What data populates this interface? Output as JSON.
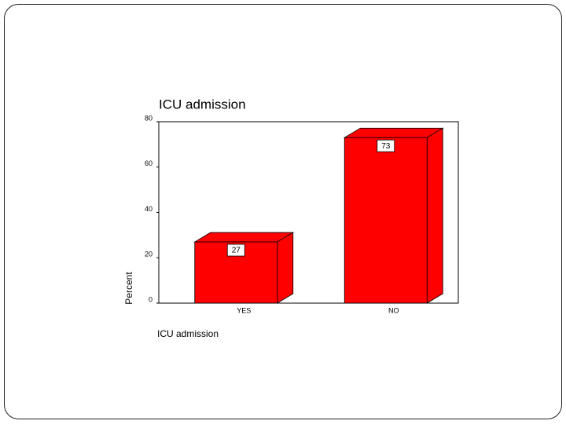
{
  "chart_data": {
    "type": "bar3d",
    "title": "ICU admission",
    "categories": [
      "YES",
      "NO"
    ],
    "values": [
      27,
      73
    ],
    "color": "#ff0000",
    "x_label": "ICU admission",
    "y_label": "Percent",
    "ylim": [
      0,
      80
    ],
    "yticks": [
      0,
      20,
      40,
      60,
      80
    ]
  }
}
